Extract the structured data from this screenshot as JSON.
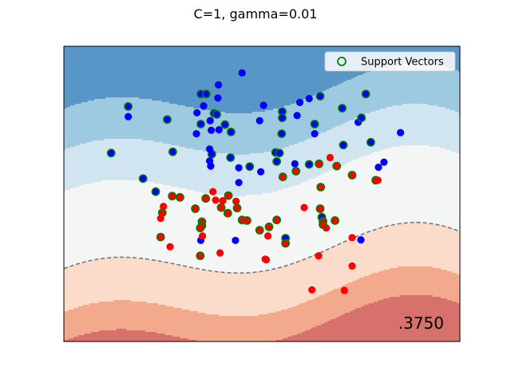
{
  "chart_data": {
    "type": "scatter",
    "title": "C=1, gamma=0.01",
    "score_label": ".3750",
    "legend": {
      "label": "Support Vectors",
      "placement": "top-right"
    },
    "xlim": [
      -3.6,
      3.6
    ],
    "ylim": [
      -2.6,
      2.6
    ],
    "axes_visible": false,
    "grid": false,
    "colors": {
      "class_blue": "#0000ff",
      "class_red": "#ff0000",
      "support_ring": "#007f00",
      "boundary": "#777777"
    },
    "contour_bands": [
      {
        "level": "blue-3",
        "color": "#5896c8"
      },
      {
        "level": "blue-2",
        "color": "#9ecae1"
      },
      {
        "level": "blue-1",
        "color": "#d1e5f0"
      },
      {
        "level": "neutral",
        "color": "#f4f6f6"
      },
      {
        "level": "red-1",
        "color": "#fbdbc9"
      },
      {
        "level": "red-2",
        "color": "#f2a98c"
      },
      {
        "level": "red-3",
        "color": "#d6716b"
      }
    ],
    "series": [
      {
        "class": "blue",
        "points": [
          {
            "x": -1.11,
            "y": 1.76,
            "sv": true
          },
          {
            "x": -1.01,
            "y": 1.76,
            "sv": true
          },
          {
            "x": -0.8,
            "y": 1.69,
            "sv": false
          },
          {
            "x": -0.79,
            "y": 1.92,
            "sv": false
          },
          {
            "x": -0.36,
            "y": 2.13,
            "sv": false
          },
          {
            "x": 0.69,
            "y": 1.61,
            "sv": false
          },
          {
            "x": 0.86,
            "y": 1.68,
            "sv": false
          },
          {
            "x": 1.06,
            "y": 1.72,
            "sv": true
          },
          {
            "x": 1.89,
            "y": 1.76,
            "sv": true
          },
          {
            "x": -2.43,
            "y": 1.54,
            "sv": true
          },
          {
            "x": -2.43,
            "y": 1.36,
            "sv": false
          },
          {
            "x": -1.72,
            "y": 1.31,
            "sv": true
          },
          {
            "x": -1.06,
            "y": 1.55,
            "sv": false
          },
          {
            "x": -1.18,
            "y": 1.43,
            "sv": false
          },
          {
            "x": -1.11,
            "y": 1.23,
            "sv": true
          },
          {
            "x": -0.94,
            "y": 1.29,
            "sv": false
          },
          {
            "x": -0.87,
            "y": 1.42,
            "sv": true
          },
          {
            "x": -0.82,
            "y": 1.4,
            "sv": true
          },
          {
            "x": -0.78,
            "y": 1.13,
            "sv": false
          },
          {
            "x": -0.92,
            "y": 1.12,
            "sv": false
          },
          {
            "x": -0.67,
            "y": 1.22,
            "sv": true
          },
          {
            "x": -0.56,
            "y": 1.09,
            "sv": true
          },
          {
            "x": -1.19,
            "y": 1.06,
            "sv": false
          },
          {
            "x": 0.03,
            "y": 1.56,
            "sv": false
          },
          {
            "x": -0.04,
            "y": 1.29,
            "sv": false
          },
          {
            "x": 0.37,
            "y": 1.45,
            "sv": true
          },
          {
            "x": 0.37,
            "y": 1.34,
            "sv": true
          },
          {
            "x": 0.64,
            "y": 1.38,
            "sv": false
          },
          {
            "x": 0.36,
            "y": 1.06,
            "sv": true
          },
          {
            "x": 0.96,
            "y": 1.23,
            "sv": true
          },
          {
            "x": 0.96,
            "y": 1.06,
            "sv": false
          },
          {
            "x": 1.46,
            "y": 1.51,
            "sv": true
          },
          {
            "x": 1.75,
            "y": 1.26,
            "sv": false
          },
          {
            "x": 1.81,
            "y": 1.34,
            "sv": true
          },
          {
            "x": 2.52,
            "y": 1.08,
            "sv": false
          },
          {
            "x": -2.74,
            "y": 0.72,
            "sv": true
          },
          {
            "x": -1.62,
            "y": 0.74,
            "sv": true
          },
          {
            "x": -0.91,
            "y": 0.7,
            "sv": true
          },
          {
            "x": -0.95,
            "y": 0.58,
            "sv": false
          },
          {
            "x": -0.57,
            "y": 0.64,
            "sv": true
          },
          {
            "x": -0.42,
            "y": 0.46,
            "sv": false
          },
          {
            "x": -0.22,
            "y": 0.48,
            "sv": true
          },
          {
            "x": -0.02,
            "y": 0.39,
            "sv": false
          },
          {
            "x": 0.25,
            "y": 0.73,
            "sv": true
          },
          {
            "x": 0.27,
            "y": 0.57,
            "sv": true
          },
          {
            "x": 0.6,
            "y": 0.53,
            "sv": false
          },
          {
            "x": 0.86,
            "y": 0.52,
            "sv": true
          },
          {
            "x": 1.48,
            "y": 0.86,
            "sv": true
          },
          {
            "x": 1.98,
            "y": 0.91,
            "sv": true
          },
          {
            "x": 2.22,
            "y": 0.56,
            "sv": false
          },
          {
            "x": 2.12,
            "y": 0.47,
            "sv": false
          },
          {
            "x": -2.16,
            "y": 0.27,
            "sv": true
          },
          {
            "x": -1.93,
            "y": 0.04,
            "sv": true
          },
          {
            "x": -0.95,
            "y": 0.79,
            "sv": false
          },
          {
            "x": -0.93,
            "y": 0.49,
            "sv": false
          },
          {
            "x": -0.42,
            "y": 0.2,
            "sv": false
          },
          {
            "x": 0.32,
            "y": 0.72,
            "sv": true
          },
          {
            "x": -1.11,
            "y": -0.82,
            "sv": false
          },
          {
            "x": -0.48,
            "y": -0.82,
            "sv": false
          },
          {
            "x": 0.43,
            "y": -0.78,
            "sv": true
          },
          {
            "x": 1.09,
            "y": -0.41,
            "sv": true
          },
          {
            "x": 1.8,
            "y": -0.81,
            "sv": false
          }
        ]
      },
      {
        "class": "red",
        "points": [
          {
            "x": 1.04,
            "y": 0.53,
            "sv": true
          },
          {
            "x": 1.24,
            "y": 0.64,
            "sv": false
          },
          {
            "x": 1.36,
            "y": 0.49,
            "sv": true
          },
          {
            "x": 1.64,
            "y": 0.33,
            "sv": true
          },
          {
            "x": 2.07,
            "y": 0.24,
            "sv": true
          },
          {
            "x": 2.11,
            "y": 0.24,
            "sv": false
          },
          {
            "x": 0.62,
            "y": 0.4,
            "sv": true
          },
          {
            "x": 0.38,
            "y": 0.3,
            "sv": true
          },
          {
            "x": 1.07,
            "y": 0.12,
            "sv": true
          },
          {
            "x": -0.89,
            "y": 0.04,
            "sv": false
          },
          {
            "x": -1.63,
            "y": -0.04,
            "sv": true
          },
          {
            "x": -1.49,
            "y": -0.06,
            "sv": true
          },
          {
            "x": -1.02,
            "y": -0.08,
            "sv": true
          },
          {
            "x": -0.71,
            "y": -0.12,
            "sv": false
          },
          {
            "x": -0.61,
            "y": -0.03,
            "sv": true
          },
          {
            "x": -0.84,
            "y": -0.11,
            "sv": false
          },
          {
            "x": -0.47,
            "y": -0.13,
            "sv": false
          },
          {
            "x": -1.79,
            "y": -0.22,
            "sv": false
          },
          {
            "x": -1.81,
            "y": -0.33,
            "sv": true
          },
          {
            "x": -1.84,
            "y": -0.43,
            "sv": false
          },
          {
            "x": -1.21,
            "y": -0.26,
            "sv": true
          },
          {
            "x": -0.62,
            "y": -0.34,
            "sv": true
          },
          {
            "x": -0.74,
            "y": -0.24,
            "sv": true
          },
          {
            "x": -0.45,
            "y": -0.25,
            "sv": true
          },
          {
            "x": -1.09,
            "y": -0.49,
            "sv": true
          },
          {
            "x": -1.09,
            "y": -0.56,
            "sv": true
          },
          {
            "x": -1.12,
            "y": -0.6,
            "sv": true
          },
          {
            "x": -1.08,
            "y": -0.74,
            "sv": false
          },
          {
            "x": -0.36,
            "y": -0.46,
            "sv": true
          },
          {
            "x": -0.27,
            "y": -0.47,
            "sv": true
          },
          {
            "x": -0.04,
            "y": -0.64,
            "sv": true
          },
          {
            "x": 0.13,
            "y": -0.58,
            "sv": true
          },
          {
            "x": 0.27,
            "y": -0.46,
            "sv": true
          },
          {
            "x": 0.11,
            "y": -0.74,
            "sv": false
          },
          {
            "x": 0.43,
            "y": -0.87,
            "sv": true
          },
          {
            "x": 0.77,
            "y": -0.24,
            "sv": false
          },
          {
            "x": 1.06,
            "y": -0.26,
            "sv": true
          },
          {
            "x": 1.11,
            "y": -0.48,
            "sv": true
          },
          {
            "x": 1.17,
            "y": -0.6,
            "sv": false
          },
          {
            "x": 1.33,
            "y": -0.47,
            "sv": true
          },
          {
            "x": 1.11,
            "y": -0.54,
            "sv": true
          },
          {
            "x": -1.84,
            "y": -0.76,
            "sv": true
          },
          {
            "x": -1.67,
            "y": -0.93,
            "sv": false
          },
          {
            "x": -1.12,
            "y": -1.09,
            "sv": true
          },
          {
            "x": -0.76,
            "y": -1.04,
            "sv": false
          },
          {
            "x": 0.06,
            "y": -1.15,
            "sv": false
          },
          {
            "x": 0.08,
            "y": -1.16,
            "sv": false
          },
          {
            "x": 1.03,
            "y": -1.09,
            "sv": false
          },
          {
            "x": 1.64,
            "y": -0.77,
            "sv": false
          },
          {
            "x": 1.64,
            "y": -1.27,
            "sv": false
          },
          {
            "x": 0.91,
            "y": -1.69,
            "sv": false
          },
          {
            "x": 1.5,
            "y": -1.7,
            "sv": false
          }
        ]
      }
    ]
  }
}
